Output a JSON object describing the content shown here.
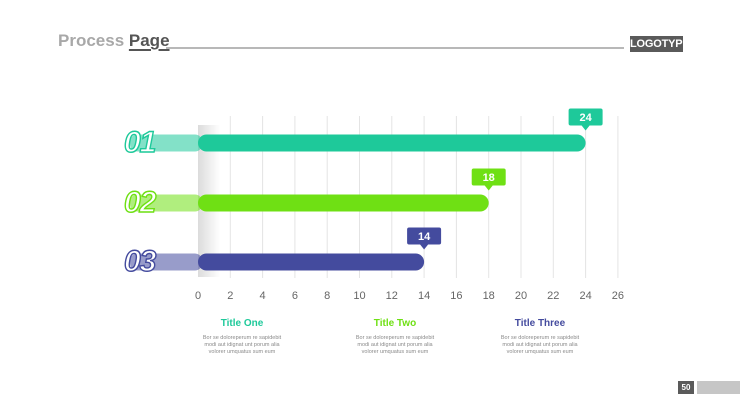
{
  "header": {
    "title_part1": "Process ",
    "title_part2": "Page",
    "logo": "LOGOTYPE"
  },
  "chart_data": {
    "type": "bar",
    "orientation": "horizontal",
    "categories": [
      "01",
      "02",
      "03"
    ],
    "values": [
      24,
      18,
      14
    ],
    "value_labels": [
      "24",
      "18",
      "14"
    ],
    "colors": [
      "#1ec99a",
      "#6fe014",
      "#444b9e"
    ],
    "xlim": [
      0,
      26
    ],
    "xticks": [
      0,
      2,
      4,
      6,
      8,
      10,
      12,
      14,
      16,
      18,
      20,
      22,
      24,
      26
    ],
    "grid": true
  },
  "panels": [
    {
      "title": "Title One",
      "color": "#1ec99a",
      "desc": [
        "Bor se doloreperum re sapidebit",
        "modi aut idignat unt porum alia",
        "volorer umquatus sum eum"
      ]
    },
    {
      "title": "Title Two",
      "color": "#6fe014",
      "desc": [
        "Bor se doloreperum re sapidebit",
        "modi aut idignat unt porum alia",
        "volorer umquatus sum eum"
      ]
    },
    {
      "title": "Title Three",
      "color": "#444b9e",
      "desc": [
        "Bor se doloreperum re sapidebit",
        "modi aut idignat unt porum alia",
        "volorer umquatus sum eum"
      ]
    }
  ],
  "footer": {
    "page_number": "50"
  }
}
